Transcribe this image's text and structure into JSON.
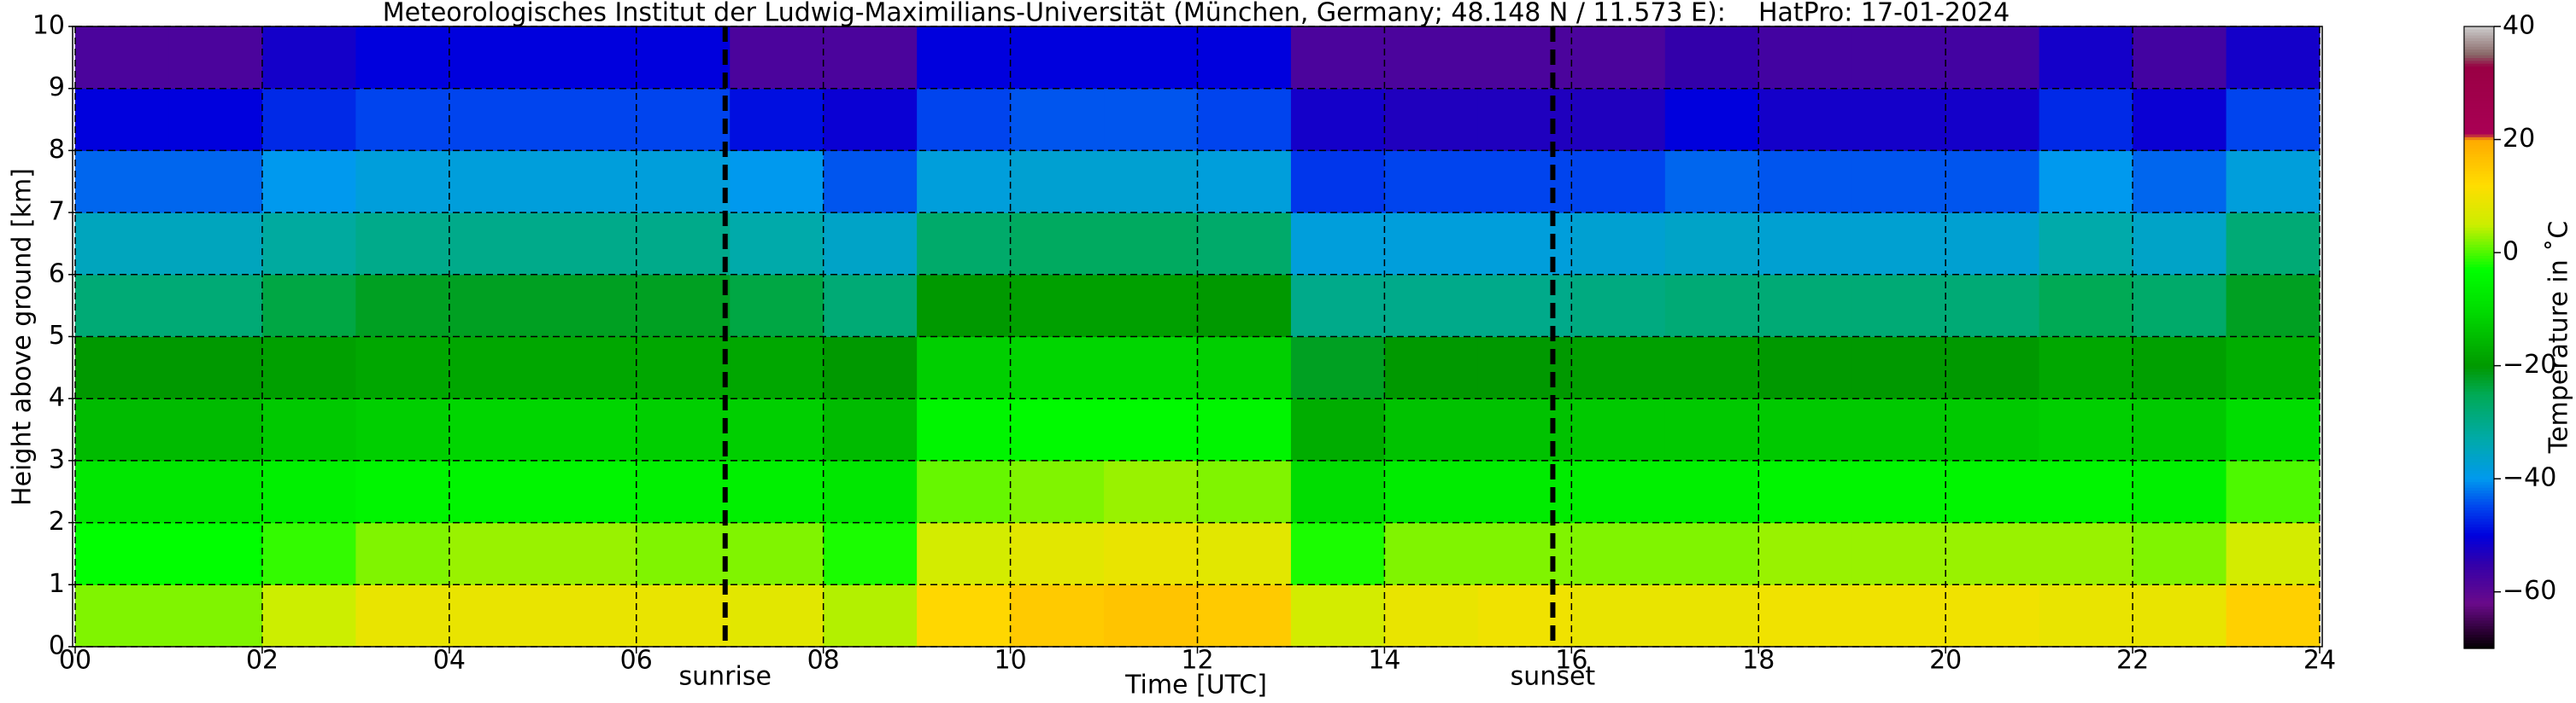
{
  "chart_data": {
    "type": "heatmap",
    "title": "Meteorologisches Institut der Ludwig-Maximilians-Universität (München, Germany; 48.148 N / 11.573 E):    HatPro: 17-01-2024",
    "x_label": "Time [UTC]",
    "y_label": "Height above ground [km]",
    "colorbar_label": "Temperature in ˚C",
    "xlim": [
      0,
      24
    ],
    "ylim": [
      0,
      10
    ],
    "xticks": [
      {
        "value": 0,
        "label": "00"
      },
      {
        "value": 2,
        "label": "02"
      },
      {
        "value": 4,
        "label": "04"
      },
      {
        "value": 6,
        "label": "06"
      },
      {
        "value": 8,
        "label": "08"
      },
      10,
      12,
      14,
      16,
      18,
      20,
      22,
      24
    ],
    "yticks": [
      0,
      1,
      2,
      3,
      4,
      5,
      6,
      7,
      8,
      9,
      10
    ],
    "grid": true,
    "xbins": [
      0,
      1,
      2,
      3,
      4,
      5,
      6,
      7,
      8,
      9,
      10,
      11,
      12,
      13,
      14,
      15,
      16,
      17,
      18,
      19,
      20,
      21,
      22,
      23,
      24
    ],
    "ybins": [
      0,
      1,
      2,
      3,
      4,
      5,
      6,
      7,
      8,
      9,
      10
    ],
    "values": [
      [
        2,
        2,
        5,
        9,
        9,
        9,
        9,
        8,
        4,
        13,
        15,
        16,
        15,
        6,
        9,
        10,
        9,
        9,
        10,
        10,
        10,
        9,
        9,
        14
      ],
      [
        -3,
        -3,
        -1,
        2,
        3,
        3,
        2,
        2,
        -2,
        6,
        8,
        9,
        8,
        -2,
        2,
        2,
        2,
        2,
        3,
        3,
        3,
        3,
        2,
        6
      ],
      [
        -8,
        -8,
        -6,
        -5,
        -5,
        -5,
        -6,
        -6,
        -8,
        1,
        2,
        3,
        2,
        -10,
        -7,
        -7,
        -6,
        -6,
        -5,
        -5,
        -5,
        -5,
        -6,
        0
      ],
      [
        -15,
        -15,
        -13,
        -12,
        -11,
        -11,
        -12,
        -12,
        -15,
        -5,
        -4,
        -4,
        -5,
        -17,
        -14,
        -14,
        -13,
        -13,
        -13,
        -13,
        -13,
        -12,
        -13,
        -10
      ],
      [
        -20,
        -20,
        -19,
        -18,
        -18,
        -18,
        -18,
        -18,
        -20,
        -12,
        -11,
        -11,
        -12,
        -22,
        -20,
        -20,
        -19,
        -19,
        -20,
        -20,
        -20,
        -18,
        -19,
        -17
      ],
      [
        -28,
        -28,
        -24,
        -22,
        -22,
        -22,
        -22,
        -24,
        -28,
        -20,
        -19,
        -19,
        -20,
        -30,
        -30,
        -30,
        -29,
        -28,
        -28,
        -28,
        -28,
        -25,
        -27,
        -22
      ],
      [
        -35,
        -35,
        -32,
        -30,
        -30,
        -30,
        -30,
        -33,
        -36,
        -27,
        -26,
        -26,
        -27,
        -38,
        -38,
        -38,
        -37,
        -36,
        -37,
        -37,
        -37,
        -33,
        -36,
        -28
      ],
      [
        -43,
        -43,
        -40,
        -38,
        -38,
        -38,
        -38,
        -40,
        -44,
        -38,
        -37,
        -37,
        -38,
        -46,
        -45,
        -45,
        -45,
        -43,
        -44,
        -44,
        -44,
        -40,
        -43,
        -38
      ],
      [
        -50,
        -50,
        -47,
        -45,
        -45,
        -45,
        -45,
        -49,
        -51,
        -45,
        -44,
        -44,
        -45,
        -52,
        -53,
        -53,
        -53,
        -50,
        -52,
        -52,
        -52,
        -47,
        -51,
        -45
      ],
      [
        -58,
        -58,
        -52,
        -50,
        -50,
        -50,
        -50,
        -58,
        -58,
        -50,
        -50,
        -50,
        -50,
        -58,
        -58,
        -58,
        -58,
        -55,
        -57,
        -57,
        -57,
        -52,
        -57,
        -52
      ]
    ],
    "colorbar_lim": [
      -70,
      40
    ],
    "colorbar_ticks": [
      {
        "value": -60,
        "label": "−60"
      },
      {
        "value": -40,
        "label": "−40"
      },
      {
        "value": -20,
        "label": "−20"
      },
      0,
      20,
      40
    ],
    "colormap": [
      {
        "value": -70,
        "color": "#000000"
      },
      {
        "value": -67,
        "color": "#2a0033"
      },
      {
        "value": -62,
        "color": "#6a0a8a"
      },
      {
        "value": -55,
        "color": "#3300aa"
      },
      {
        "value": -50,
        "color": "#0000dd"
      },
      {
        "value": -45,
        "color": "#0044ee"
      },
      {
        "value": -40,
        "color": "#0099ee"
      },
      {
        "value": -33,
        "color": "#00aaaa"
      },
      {
        "value": -25,
        "color": "#00aa55"
      },
      {
        "value": -20,
        "color": "#009900"
      },
      {
        "value": -10,
        "color": "#00dd00"
      },
      {
        "value": -3,
        "color": "#00ff00"
      },
      {
        "value": 5,
        "color": "#ccee00"
      },
      {
        "value": 12,
        "color": "#ffdd00"
      },
      {
        "value": 20,
        "color": "#ffaa00"
      },
      {
        "value": 21,
        "color": "#aa0055"
      },
      {
        "value": 33,
        "color": "#990044"
      },
      {
        "value": 35,
        "color": "#886666"
      },
      {
        "value": 40,
        "color": "#cccccc"
      }
    ],
    "markers": [
      {
        "label": "sunrise",
        "x": 6.95
      },
      {
        "label": "sunset",
        "x": 15.8
      }
    ]
  }
}
